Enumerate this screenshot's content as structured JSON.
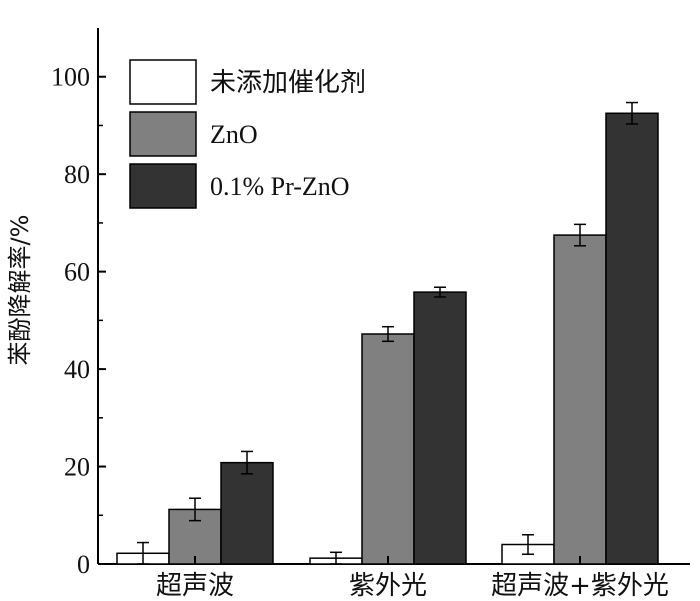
{
  "chart_data": {
    "type": "bar",
    "title": "",
    "xlabel": "",
    "ylabel": "苯酚降解率/%",
    "ylim": [
      0,
      110
    ],
    "yticks": [
      0,
      20,
      40,
      60,
      80,
      100
    ],
    "categories": [
      "超声波",
      "紫外光",
      "超声波+紫外光"
    ],
    "series": [
      {
        "name": "未添加催化剂",
        "color": "#ffffff",
        "values": [
          2.2,
          1.2,
          4.0
        ],
        "errors": [
          2.2,
          1.2,
          2.0
        ]
      },
      {
        "name": "ZnO",
        "color": "#808080",
        "values": [
          11.2,
          47.2,
          67.5
        ],
        "errors": [
          2.3,
          1.5,
          2.2
        ]
      },
      {
        "name": "0.1% Pr-ZnO",
        "color": "#333333",
        "values": [
          20.8,
          55.8,
          92.5
        ],
        "errors": [
          2.3,
          1.0,
          2.2
        ]
      }
    ],
    "legend": "top-left",
    "grid": false
  }
}
